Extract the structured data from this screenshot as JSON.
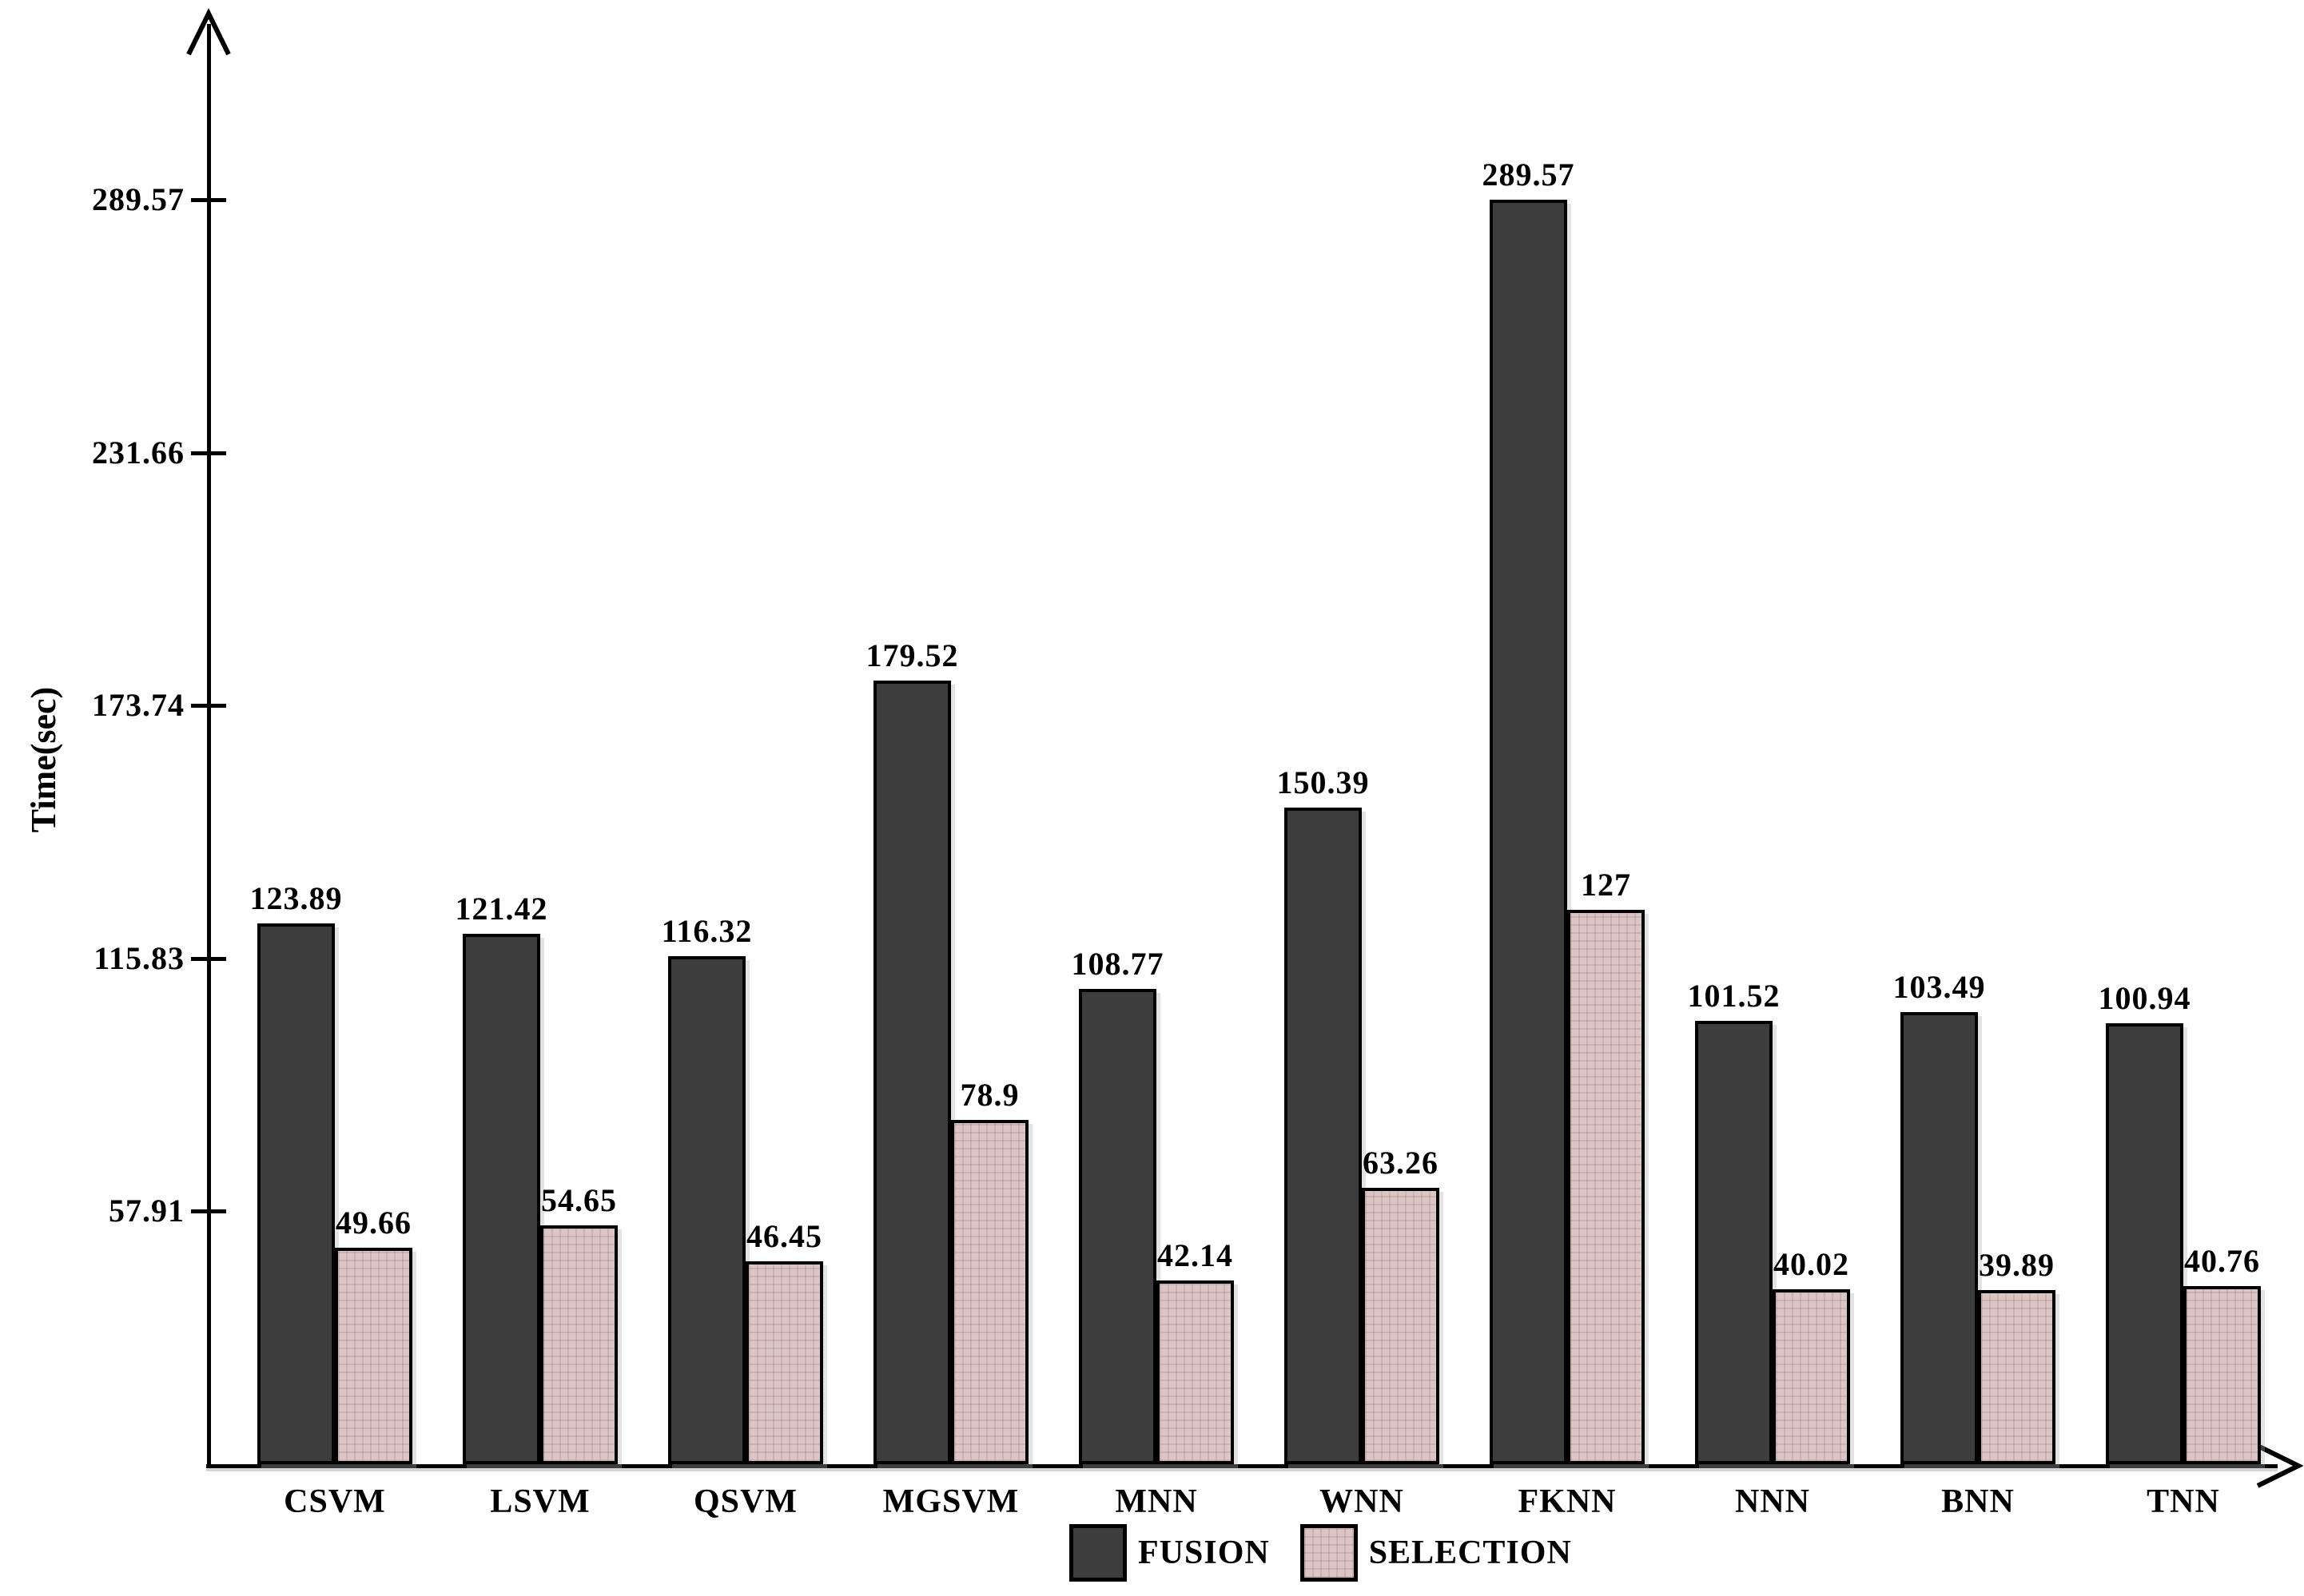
{
  "chart_data": {
    "type": "bar",
    "title": "",
    "xlabel": "",
    "ylabel": "Time(sec)",
    "categories": [
      "CSVM",
      "LSVM",
      "QSVM",
      "MGSVM",
      "MNN",
      "WNN",
      "FKNN",
      "NNN",
      "BNN",
      "TNN"
    ],
    "series": [
      {
        "name": "FUSION",
        "color": "#3d3d3d",
        "values": [
          123.89,
          121.42,
          116.32,
          179.52,
          108.77,
          150.39,
          289.57,
          101.52,
          103.49,
          100.94
        ]
      },
      {
        "name": "SELECTION",
        "color": "#dcc6c5",
        "values": [
          49.66,
          54.65,
          46.45,
          78.9,
          42.14,
          63.26,
          127,
          40.02,
          39.89,
          40.76
        ]
      }
    ],
    "yticks": [
      57.91,
      115.83,
      173.74,
      231.66,
      289.57
    ],
    "ylim": [
      0,
      330
    ],
    "grid": false,
    "bar_value_labels": true,
    "legend_position": "bottom-center",
    "axis_color": "#000000",
    "background_color": "#ffffff"
  }
}
